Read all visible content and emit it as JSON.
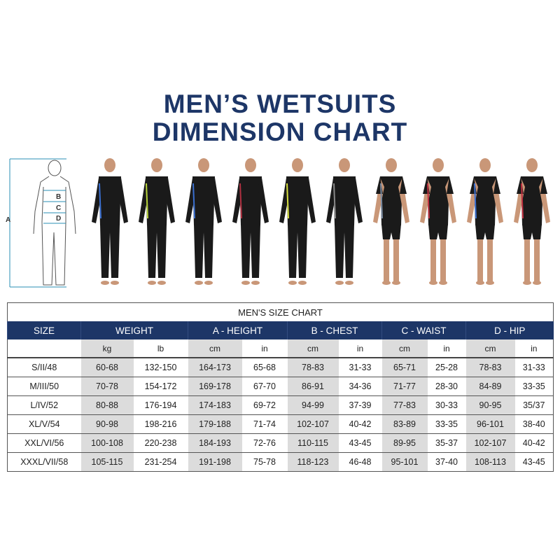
{
  "heading": {
    "line1": "MEN’S WETSUITS",
    "line2": "DIMENSION CHART"
  },
  "diagram": {
    "labels": {
      "a": "A",
      "b": "B",
      "c": "C",
      "d": "D"
    },
    "accent": "#2a8fb5"
  },
  "models": {
    "count": 10,
    "suit_styles": [
      "full",
      "full",
      "full",
      "full",
      "full",
      "full",
      "shorty",
      "shorty",
      "shorty",
      "shorty"
    ]
  },
  "table": {
    "caption": "MEN'S SIZE CHART",
    "header_color": "#1d3667",
    "groups": [
      "SIZE",
      "WEIGHT",
      "A - HEIGHT",
      "B - CHEST",
      "C - WAIST",
      "D - HIP"
    ],
    "units": [
      "",
      "kg",
      "lb",
      "cm",
      "in",
      "cm",
      "in",
      "cm",
      "in",
      "cm",
      "in"
    ],
    "rows": [
      [
        "S/II/48",
        "60-68",
        "132-150",
        "164-173",
        "65-68",
        "78-83",
        "31-33",
        "65-71",
        "25-28",
        "78-83",
        "31-33"
      ],
      [
        "M/III/50",
        "70-78",
        "154-172",
        "169-178",
        "67-70",
        "86-91",
        "34-36",
        "71-77",
        "28-30",
        "84-89",
        "33-35"
      ],
      [
        "L/IV/52",
        "80-88",
        "176-194",
        "174-183",
        "69-72",
        "94-99",
        "37-39",
        "77-83",
        "30-33",
        "90-95",
        "35/37"
      ],
      [
        "XL/V/54",
        "90-98",
        "198-216",
        "179-188",
        "71-74",
        "102-107",
        "40-42",
        "83-89",
        "33-35",
        "96-101",
        "38-40"
      ],
      [
        "XXL/VI/56",
        "100-108",
        "220-238",
        "184-193",
        "72-76",
        "110-115",
        "43-45",
        "89-95",
        "35-37",
        "102-107",
        "40-42"
      ],
      [
        "XXXL/VII/58",
        "105-115",
        "231-254",
        "191-198",
        "75-78",
        "118-123",
        "46-48",
        "95-101",
        "37-40",
        "108-113",
        "43-45"
      ]
    ]
  }
}
